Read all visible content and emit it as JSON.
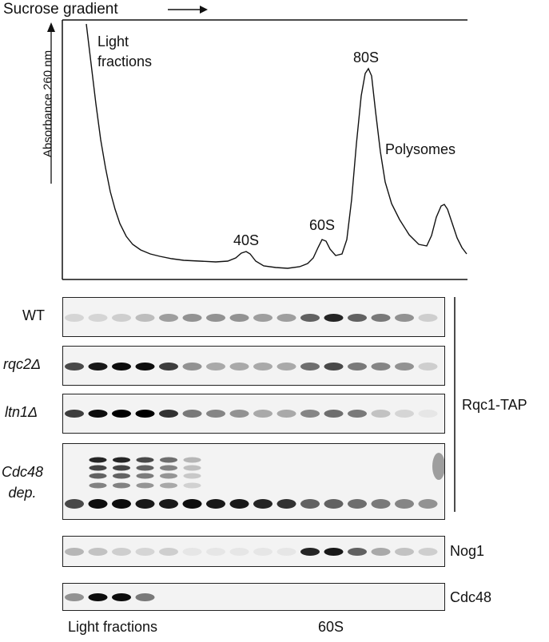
{
  "profile": {
    "gradient_label": "Sucrose gradient",
    "ylabel": "Absorbance 260 nm",
    "light_fractions": "Light\nfractions",
    "peak_40s": "40S",
    "peak_60s": "60S",
    "peak_80s": "80S",
    "polysomes": "Polysomes"
  },
  "blots": [
    {
      "label": "WT",
      "italic": false
    },
    {
      "label": "rqc2Δ",
      "italic": true
    },
    {
      "label": "ltn1Δ",
      "italic": true
    },
    {
      "label": "Cdc48\ndep.",
      "italic": true
    },
    {
      "label": "Nog1",
      "italic": false
    },
    {
      "label": "Cdc48",
      "italic": false
    }
  ],
  "bracket_label": "Rqc1-TAP",
  "bottom": {
    "light_fractions": "Light fractions",
    "sixty_s": "60S"
  }
}
